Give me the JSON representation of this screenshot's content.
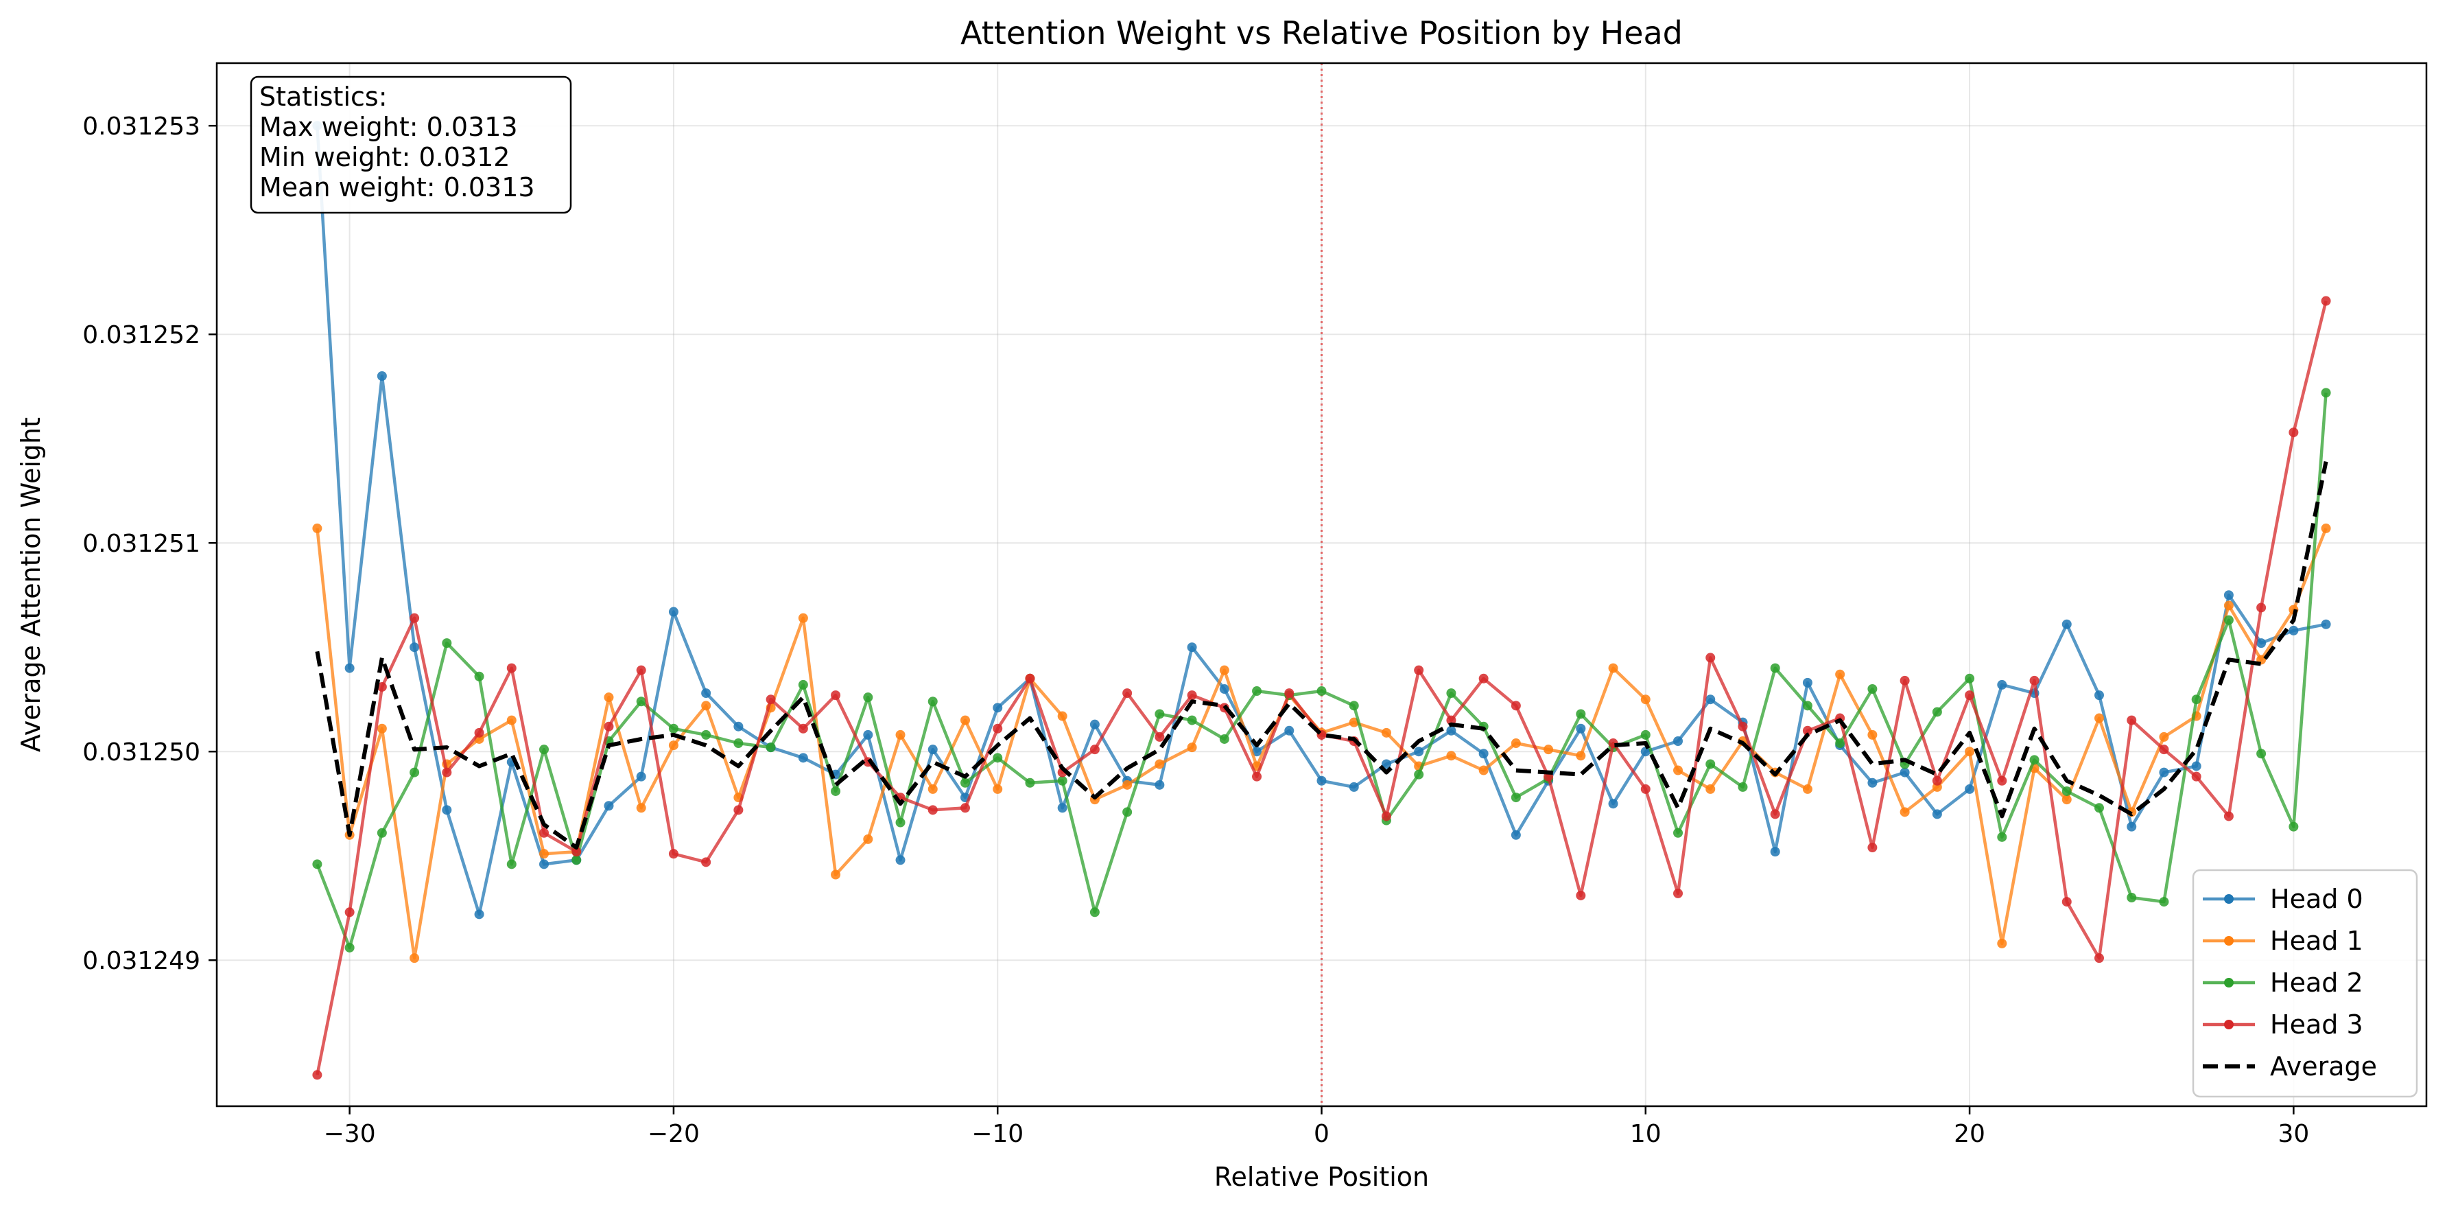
{
  "chart_data": {
    "type": "line",
    "title": "Attention Weight vs Relative Position by Head",
    "xlabel": "Relative Position",
    "ylabel": "Average Attention Weight",
    "xlim": [
      -34.1,
      34.1
    ],
    "ylim": [
      0.0312483,
      0.0312533
    ],
    "x_ticks": [
      -30,
      -20,
      -10,
      0,
      10,
      20,
      30
    ],
    "x_tick_labels": [
      "−30",
      "−20",
      "−10",
      "0",
      "10",
      "20",
      "30"
    ],
    "y_ticks": [
      0.031249,
      0.03125,
      0.031251,
      0.031252,
      0.031253
    ],
    "y_tick_labels": [
      "0.031249",
      "0.031250",
      "0.031251",
      "0.031252",
      "0.031253"
    ],
    "grid": true,
    "legend_position": "lower-right",
    "reference_line": {
      "x": 0,
      "color": "#e05252",
      "style": "dotted"
    },
    "stats_box": {
      "position": "top-left",
      "lines": [
        "Statistics:",
        "Max weight: 0.0313",
        "Min weight: 0.0312",
        "Mean weight: 0.0313"
      ]
    },
    "x": [
      -31,
      -30,
      -29,
      -28,
      -27,
      -26,
      -25,
      -24,
      -23,
      -22,
      -21,
      -20,
      -19,
      -18,
      -17,
      -16,
      -15,
      -14,
      -13,
      -12,
      -11,
      -10,
      -9,
      -8,
      -7,
      -6,
      -5,
      -4,
      -3,
      -2,
      -1,
      0,
      1,
      2,
      3,
      4,
      5,
      6,
      7,
      8,
      9,
      10,
      11,
      12,
      13,
      14,
      15,
      16,
      17,
      18,
      19,
      20,
      21,
      22,
      23,
      24,
      25,
      26,
      27,
      28,
      29,
      30,
      31
    ],
    "series": [
      {
        "name": "Head 0",
        "color": "#1f77b4",
        "style": "solid-marker",
        "values": [
          0.031253,
          0.0312504,
          0.0312518,
          0.0312505,
          0.03124972,
          0.03124922,
          0.03124995,
          0.03124946,
          0.03124948,
          0.03124974,
          0.03124988,
          0.03125067,
          0.03125028,
          0.03125012,
          0.03125002,
          0.03124997,
          0.03124989,
          0.03125008,
          0.03124948,
          0.03125001,
          0.03124978,
          0.03125021,
          0.03125035,
          0.03124973,
          0.03125013,
          0.03124986,
          0.03124984,
          0.0312505,
          0.0312503,
          0.03125,
          0.0312501,
          0.03124986,
          0.03124983,
          0.03124994,
          0.03125,
          0.0312501,
          0.03124999,
          0.0312496,
          0.03124986,
          0.03125011,
          0.03124975,
          0.03125,
          0.03125005,
          0.03125025,
          0.03125014,
          0.03124952,
          0.03125033,
          0.03125003,
          0.03124985,
          0.0312499,
          0.0312497,
          0.03124982,
          0.03125032,
          0.03125028,
          0.03125061,
          0.03125027,
          0.03124964,
          0.0312499,
          0.03124993,
          0.03125075,
          0.03125052,
          0.03125058,
          0.03125061
        ]
      },
      {
        "name": "Head 1",
        "color": "#ff7f0e",
        "style": "solid-marker",
        "values": [
          0.03125107,
          0.0312496,
          0.03125011,
          0.03124901,
          0.03124994,
          0.03125006,
          0.03125015,
          0.03124951,
          0.03124952,
          0.03125026,
          0.03124973,
          0.03125003,
          0.03125022,
          0.03124978,
          0.03125021,
          0.03125064,
          0.03124941,
          0.03124958,
          0.03125008,
          0.03124982,
          0.03125015,
          0.03124982,
          0.03125035,
          0.03125017,
          0.03124977,
          0.03124984,
          0.03124994,
          0.03125002,
          0.03125039,
          0.03124993,
          0.03125027,
          0.03125009,
          0.03125014,
          0.03125009,
          0.03124993,
          0.03124998,
          0.03124991,
          0.03125004,
          0.03125001,
          0.03124998,
          0.0312504,
          0.03125025,
          0.03124991,
          0.03124982,
          0.03125005,
          0.0312499,
          0.03124982,
          0.03125037,
          0.03125008,
          0.03124971,
          0.03124983,
          0.03125,
          0.03124908,
          0.03124992,
          0.03124977,
          0.03125016,
          0.03124971,
          0.03125007,
          0.03125017,
          0.0312507,
          0.03125044,
          0.03125068,
          0.03125107
        ]
      },
      {
        "name": "Head 2",
        "color": "#2ca02c",
        "style": "solid-marker",
        "values": [
          0.03124946,
          0.03124906,
          0.03124961,
          0.0312499,
          0.03125052,
          0.03125036,
          0.03124946,
          0.03125001,
          0.03124948,
          0.03125005,
          0.03125024,
          0.03125011,
          0.03125008,
          0.03125004,
          0.03125002,
          0.03125032,
          0.03124981,
          0.03125026,
          0.03124966,
          0.03125024,
          0.03124985,
          0.03124997,
          0.03124985,
          0.03124986,
          0.03124923,
          0.03124971,
          0.03125018,
          0.03125015,
          0.03125006,
          0.03125029,
          0.03125027,
          0.03125029,
          0.03125022,
          0.03124967,
          0.03124989,
          0.03125028,
          0.03125012,
          0.03124978,
          0.03124987,
          0.03125018,
          0.03125002,
          0.03125008,
          0.03124961,
          0.03124994,
          0.03124983,
          0.0312504,
          0.03125022,
          0.03125004,
          0.0312503,
          0.03124994,
          0.03125019,
          0.03125035,
          0.03124959,
          0.03124996,
          0.03124981,
          0.03124973,
          0.0312493,
          0.03124928,
          0.03125025,
          0.03125063,
          0.03124999,
          0.03124964,
          0.03125172
        ]
      },
      {
        "name": "Head 3",
        "color": "#d62728",
        "style": "solid-marker",
        "values": [
          0.03124845,
          0.03124923,
          0.03125031,
          0.03125064,
          0.0312499,
          0.03125009,
          0.0312504,
          0.03124961,
          0.03124952,
          0.03125012,
          0.03125039,
          0.03124951,
          0.03124947,
          0.03124972,
          0.03125025,
          0.03125011,
          0.03125027,
          0.03124995,
          0.03124978,
          0.03124972,
          0.03124973,
          0.03125011,
          0.03125035,
          0.0312499,
          0.03125001,
          0.03125028,
          0.03125007,
          0.03125027,
          0.03125021,
          0.03124988,
          0.03125028,
          0.03125008,
          0.03125005,
          0.03124969,
          0.03125039,
          0.03125015,
          0.03125035,
          0.03125022,
          0.03124988,
          0.03124931,
          0.03125004,
          0.03124982,
          0.03124932,
          0.03125045,
          0.03125012,
          0.0312497,
          0.0312501,
          0.03125016,
          0.03124954,
          0.03125034,
          0.03124986,
          0.03125027,
          0.03124986,
          0.03125034,
          0.03124928,
          0.03124901,
          0.03125015,
          0.03125001,
          0.03124988,
          0.03124969,
          0.03125069,
          0.03125153,
          0.03125216
        ]
      },
      {
        "name": "Average",
        "color": "#000000",
        "style": "dashed",
        "values": [
          0.03125048,
          0.0312496,
          0.03125045,
          0.03125001,
          0.03125002,
          0.03124993,
          0.03124999,
          0.03124965,
          0.03124954,
          0.03125003,
          0.03125006,
          0.03125008,
          0.03125003,
          0.03124993,
          0.0312501,
          0.03125026,
          0.03124984,
          0.03124997,
          0.03124975,
          0.03124995,
          0.03124988,
          0.03125003,
          0.03125016,
          0.03124992,
          0.03124978,
          0.03124992,
          0.03125001,
          0.03125024,
          0.03125022,
          0.03125003,
          0.03125023,
          0.03125008,
          0.03125006,
          0.0312499,
          0.03125005,
          0.03125013,
          0.03125011,
          0.03124991,
          0.0312499,
          0.03124989,
          0.03125003,
          0.03125004,
          0.03124973,
          0.03125011,
          0.03125004,
          0.03124989,
          0.03125008,
          0.03125015,
          0.03124994,
          0.03124996,
          0.03124989,
          0.03125009,
          0.03124969,
          0.03125011,
          0.03124986,
          0.03124979,
          0.0312497,
          0.03124982,
          0.03125001,
          0.03125044,
          0.03125042,
          0.03125063,
          0.03125139
        ]
      }
    ]
  }
}
